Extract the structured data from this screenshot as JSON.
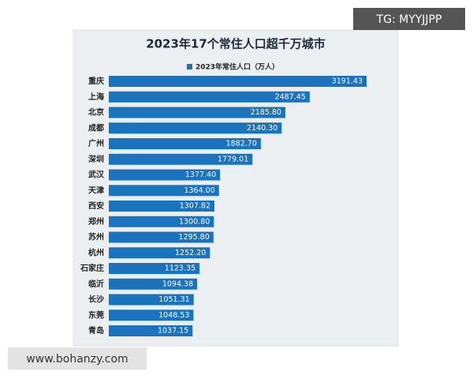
{
  "chart_data": {
    "type": "bar",
    "orientation": "horizontal",
    "title": "2023年17个常住人口超千万城市",
    "legend": "2023年常住人口（万人）",
    "color": "#1b72bd",
    "categories": [
      "重庆",
      "上海",
      "北京",
      "成都",
      "广州",
      "深圳",
      "武汉",
      "天津",
      "西安",
      "郑州",
      "苏州",
      "杭州",
      "石家庄",
      "临沂",
      "长沙",
      "东莞",
      "青岛"
    ],
    "values": [
      3191.43,
      2487.45,
      2185.8,
      2140.3,
      1882.7,
      1779.01,
      1377.4,
      1364,
      1307.82,
      1300.8,
      1295.8,
      1252.2,
      1123.35,
      1094.38,
      1051.31,
      1048.53,
      1037.15
    ],
    "value_labels": [
      "3191.43",
      "2487.45",
      "2185.80",
      "2140.30",
      "1882.70",
      "1779.01",
      "1377.40",
      "1364.00",
      "1307.82",
      "1300.80",
      "1295.80",
      "1252.20",
      "1123.35",
      "1094.38",
      "1051.31",
      "1048.53",
      "1037.15"
    ]
  },
  "watermarks": [
    "TG: MYYJJPP",
    "www.bohanzy.com"
  ]
}
